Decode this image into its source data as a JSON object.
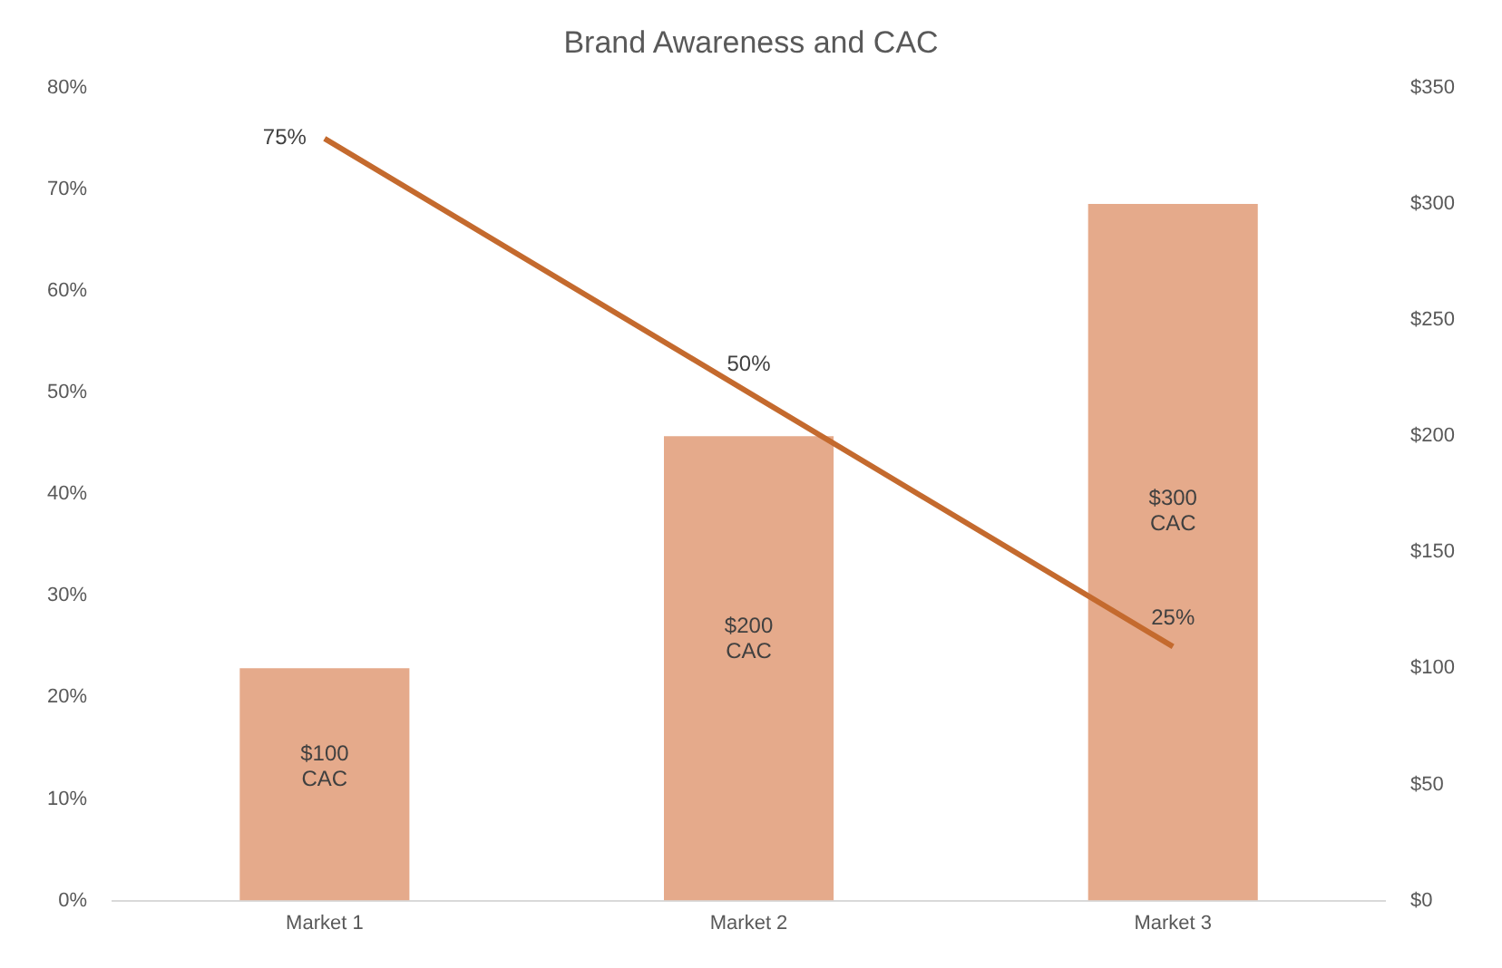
{
  "chart_data": {
    "type": "bar",
    "title": "Brand Awareness and CAC",
    "categories": [
      "Market 1",
      "Market 2",
      "Market 3"
    ],
    "series": [
      {
        "axis": "y2",
        "color": "#e5aa8b",
        "values": [
          100,
          200,
          300
        ],
        "value_labels": [
          "$100\nCAC",
          "$200\nCAC",
          "$300\nCAC"
        ]
      },
      {
        "type": "line",
        "axis": "y",
        "color": "#c46a2e",
        "values": [
          75,
          50,
          25
        ],
        "value_labels": [
          "75%",
          "50%",
          "25%"
        ]
      }
    ],
    "ylim": [
      0,
      80
    ],
    "yticks": [
      {
        "value": 0,
        "label": "0%"
      },
      {
        "value": 10,
        "label": "10%"
      },
      {
        "value": 20,
        "label": "20%"
      },
      {
        "value": 30,
        "label": "30%"
      },
      {
        "value": 40,
        "label": "40%"
      },
      {
        "value": 50,
        "label": "50%"
      },
      {
        "value": 60,
        "label": "60%"
      },
      {
        "value": 70,
        "label": "70%"
      },
      {
        "value": 80,
        "label": "80%"
      }
    ],
    "y2lim": [
      0,
      350
    ],
    "y2ticks": [
      {
        "value": 0,
        "label": "$0"
      },
      {
        "value": 50,
        "label": "$50"
      },
      {
        "value": 100,
        "label": "$100"
      },
      {
        "value": 150,
        "label": "$150"
      },
      {
        "value": 200,
        "label": "$200"
      },
      {
        "value": 250,
        "label": "$250"
      },
      {
        "value": 300,
        "label": "$300"
      },
      {
        "value": 350,
        "label": "$350"
      }
    ],
    "grid": false,
    "legend": false,
    "marker": "none"
  }
}
